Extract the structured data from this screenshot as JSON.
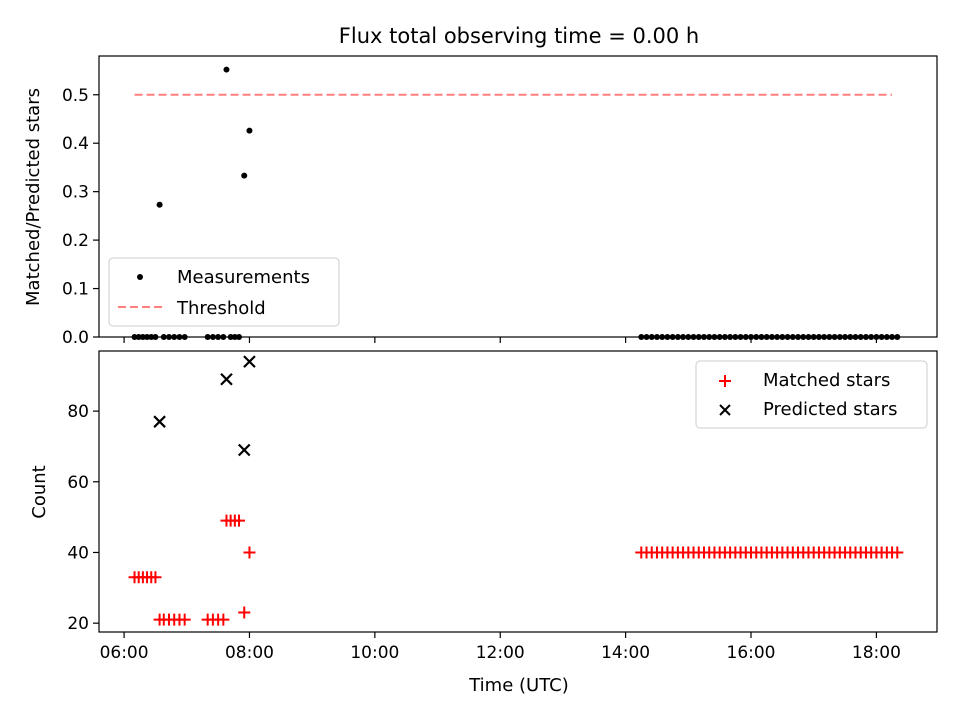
{
  "title": "Flux total observing time = 0.00 h",
  "xlabel": "Time (UTC)",
  "colors": {
    "threshold": "#ff7f7f",
    "measurement": "#000000",
    "matched": "#ff0000",
    "predicted": "#000000"
  },
  "chart_data": [
    {
      "type": "scatter",
      "title": "Flux total observing time = 0.00 h",
      "ylabel": "Matched/Predicted stars",
      "xlim": [
        "05:36",
        "18:58"
      ],
      "ylim": [
        0,
        0.58
      ],
      "yticks": [
        "0.0",
        "0.1",
        "0.2",
        "0.3",
        "0.4",
        "0.5"
      ],
      "grid": false,
      "legend": {
        "position": "bottom-left",
        "entries": [
          "Measurements",
          "Threshold"
        ]
      },
      "series": [
        {
          "name": "Measurements",
          "marker": "dot",
          "points": [
            [
              "06:10",
              0
            ],
            [
              "06:14",
              0
            ],
            [
              "06:18",
              0
            ],
            [
              "06:22",
              0
            ],
            [
              "06:26",
              0
            ],
            [
              "06:30",
              0
            ],
            [
              "06:34",
              0.273
            ],
            [
              "06:38",
              0
            ],
            [
              "06:43",
              0
            ],
            [
              "06:48",
              0
            ],
            [
              "06:53",
              0
            ],
            [
              "06:58",
              0
            ],
            [
              "07:20",
              0
            ],
            [
              "07:25",
              0
            ],
            [
              "07:30",
              0
            ],
            [
              "07:35",
              0
            ],
            [
              "07:38",
              0.552
            ],
            [
              "07:42",
              0
            ],
            [
              "07:46",
              0
            ],
            [
              "07:50",
              0
            ],
            [
              "07:55",
              0.333
            ],
            [
              "08:00",
              0.426
            ],
            [
              "14:15",
              0
            ],
            [
              "14:20",
              0
            ],
            [
              "14:25",
              0
            ],
            [
              "14:30",
              0
            ],
            [
              "14:35",
              0
            ],
            [
              "14:40",
              0
            ],
            [
              "14:45",
              0
            ],
            [
              "14:50",
              0
            ],
            [
              "14:55",
              0
            ],
            [
              "15:00",
              0
            ],
            [
              "15:05",
              0
            ],
            [
              "15:10",
              0
            ],
            [
              "15:15",
              0
            ],
            [
              "15:20",
              0
            ],
            [
              "15:25",
              0
            ],
            [
              "15:30",
              0
            ],
            [
              "15:35",
              0
            ],
            [
              "15:40",
              0
            ],
            [
              "15:45",
              0
            ],
            [
              "15:50",
              0
            ],
            [
              "15:55",
              0
            ],
            [
              "16:00",
              0
            ],
            [
              "16:05",
              0
            ],
            [
              "16:10",
              0
            ],
            [
              "16:15",
              0
            ],
            [
              "16:20",
              0
            ],
            [
              "16:25",
              0
            ],
            [
              "16:30",
              0
            ],
            [
              "16:35",
              0
            ],
            [
              "16:40",
              0
            ],
            [
              "16:45",
              0
            ],
            [
              "16:50",
              0
            ],
            [
              "16:55",
              0
            ],
            [
              "17:00",
              0
            ],
            [
              "17:05",
              0
            ],
            [
              "17:10",
              0
            ],
            [
              "17:15",
              0
            ],
            [
              "17:20",
              0
            ],
            [
              "17:25",
              0
            ],
            [
              "17:30",
              0
            ],
            [
              "17:35",
              0
            ],
            [
              "17:40",
              0
            ],
            [
              "17:45",
              0
            ],
            [
              "17:50",
              0
            ],
            [
              "17:55",
              0
            ],
            [
              "18:00",
              0
            ],
            [
              "18:05",
              0
            ],
            [
              "18:10",
              0
            ],
            [
              "18:15",
              0
            ],
            [
              "18:20",
              0
            ]
          ]
        },
        {
          "name": "Threshold",
          "type": "line",
          "style": "dashed",
          "points": [
            [
              "06:10",
              0.5
            ],
            [
              "18:15",
              0.5
            ]
          ]
        }
      ]
    },
    {
      "type": "scatter",
      "ylabel": "Count",
      "xlim": [
        "05:36",
        "18:58"
      ],
      "ylim": [
        17.5,
        97
      ],
      "yticks": [
        "20",
        "40",
        "60",
        "80"
      ],
      "xticks": [
        "06:00",
        "08:00",
        "10:00",
        "12:00",
        "14:00",
        "16:00",
        "18:00"
      ],
      "grid": false,
      "legend": {
        "position": "top-right",
        "entries": [
          "Matched stars",
          "Predicted stars"
        ]
      },
      "series": [
        {
          "name": "Matched stars",
          "marker": "plus",
          "points": [
            [
              "06:10",
              33
            ],
            [
              "06:14",
              33
            ],
            [
              "06:18",
              33
            ],
            [
              "06:22",
              33
            ],
            [
              "06:26",
              33
            ],
            [
              "06:30",
              33
            ],
            [
              "06:34",
              21
            ],
            [
              "06:38",
              21
            ],
            [
              "06:43",
              21
            ],
            [
              "06:48",
              21
            ],
            [
              "06:53",
              21
            ],
            [
              "06:58",
              21
            ],
            [
              "07:20",
              21
            ],
            [
              "07:25",
              21
            ],
            [
              "07:30",
              21
            ],
            [
              "07:35",
              21
            ],
            [
              "07:38",
              49
            ],
            [
              "07:42",
              49
            ],
            [
              "07:46",
              49
            ],
            [
              "07:50",
              49
            ],
            [
              "07:55",
              23
            ],
            [
              "08:00",
              40
            ],
            [
              "14:15",
              40
            ],
            [
              "14:20",
              40
            ],
            [
              "14:25",
              40
            ],
            [
              "14:30",
              40
            ],
            [
              "14:35",
              40
            ],
            [
              "14:40",
              40
            ],
            [
              "14:45",
              40
            ],
            [
              "14:50",
              40
            ],
            [
              "14:55",
              40
            ],
            [
              "15:00",
              40
            ],
            [
              "15:05",
              40
            ],
            [
              "15:10",
              40
            ],
            [
              "15:15",
              40
            ],
            [
              "15:20",
              40
            ],
            [
              "15:25",
              40
            ],
            [
              "15:30",
              40
            ],
            [
              "15:35",
              40
            ],
            [
              "15:40",
              40
            ],
            [
              "15:45",
              40
            ],
            [
              "15:50",
              40
            ],
            [
              "15:55",
              40
            ],
            [
              "16:00",
              40
            ],
            [
              "16:05",
              40
            ],
            [
              "16:10",
              40
            ],
            [
              "16:15",
              40
            ],
            [
              "16:20",
              40
            ],
            [
              "16:25",
              40
            ],
            [
              "16:30",
              40
            ],
            [
              "16:35",
              40
            ],
            [
              "16:40",
              40
            ],
            [
              "16:45",
              40
            ],
            [
              "16:50",
              40
            ],
            [
              "16:55",
              40
            ],
            [
              "17:00",
              40
            ],
            [
              "17:05",
              40
            ],
            [
              "17:10",
              40
            ],
            [
              "17:15",
              40
            ],
            [
              "17:20",
              40
            ],
            [
              "17:25",
              40
            ],
            [
              "17:30",
              40
            ],
            [
              "17:35",
              40
            ],
            [
              "17:40",
              40
            ],
            [
              "17:45",
              40
            ],
            [
              "17:50",
              40
            ],
            [
              "17:55",
              40
            ],
            [
              "18:00",
              40
            ],
            [
              "18:05",
              40
            ],
            [
              "18:10",
              40
            ],
            [
              "18:15",
              40
            ],
            [
              "18:20",
              40
            ]
          ]
        },
        {
          "name": "Predicted stars",
          "marker": "x",
          "points": [
            [
              "06:34",
              77
            ],
            [
              "07:38",
              89
            ],
            [
              "07:55",
              69
            ],
            [
              "08:00",
              94
            ]
          ]
        }
      ]
    }
  ]
}
